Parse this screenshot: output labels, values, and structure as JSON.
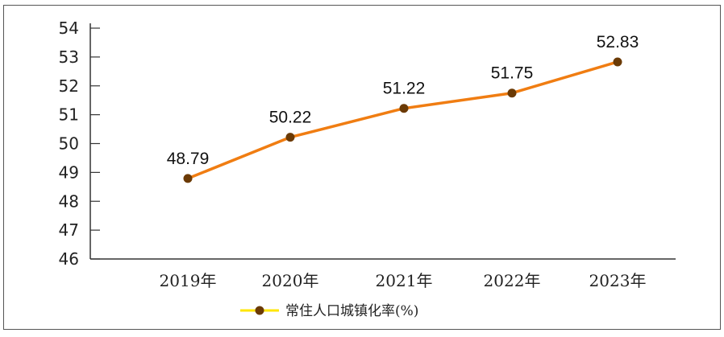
{
  "chart_data": {
    "type": "line",
    "categories": [
      "2019年",
      "2020年",
      "2021年",
      "2022年",
      "2023年"
    ],
    "series": [
      {
        "name": "常住人口城镇化率(%)",
        "values": [
          48.79,
          50.22,
          51.22,
          51.75,
          52.83
        ],
        "color": "#f07d12",
        "marker_color": "#6b3a05"
      }
    ],
    "data_labels": [
      "48.79",
      "50.22",
      "51.22",
      "51.75",
      "52.83"
    ],
    "y_ticks": [
      "46",
      "47",
      "48",
      "49",
      "50",
      "51",
      "52",
      "53",
      "54"
    ],
    "ylim": [
      46,
      54
    ],
    "grid": false,
    "legend_position": "bottom-left",
    "legend_line_color": "#ffe600"
  }
}
